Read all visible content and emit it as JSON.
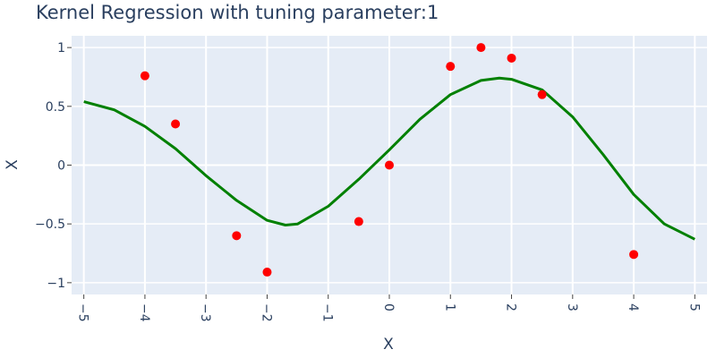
{
  "chart_data": {
    "type": "scatter",
    "title": "Kernel Regression with tuning parameter:1",
    "xlabel": "X",
    "ylabel": "X",
    "xlim": [
      -5.2,
      5.2
    ],
    "ylim": [
      -1.1,
      1.1
    ],
    "x_ticks": [
      -5,
      -4,
      -3,
      -2,
      -1,
      0,
      1,
      2,
      3,
      4,
      5
    ],
    "x_tick_labels": [
      "−5",
      "−4",
      "−3",
      "−2",
      "−1",
      "0",
      "1",
      "2",
      "3",
      "4",
      "5"
    ],
    "y_ticks": [
      -1,
      -0.5,
      0,
      0.5,
      1
    ],
    "y_tick_labels": [
      "−1",
      "−0.5",
      "0",
      "0.5",
      "1"
    ],
    "grid": true,
    "legend": "none",
    "plot_background": "#e5ecf6",
    "series": [
      {
        "type": "scatter",
        "color": "#ff0000",
        "points": [
          {
            "x": -4,
            "y": 0.76
          },
          {
            "x": -3.5,
            "y": 0.35
          },
          {
            "x": -2.5,
            "y": -0.6
          },
          {
            "x": -2,
            "y": -0.91
          },
          {
            "x": -0.5,
            "y": -0.48
          },
          {
            "x": 0,
            "y": 0
          },
          {
            "x": 1,
            "y": 0.84
          },
          {
            "x": 1.5,
            "y": 1.0
          },
          {
            "x": 2,
            "y": 0.91
          },
          {
            "x": 2.5,
            "y": 0.6
          },
          {
            "x": 4,
            "y": -0.76
          }
        ]
      },
      {
        "type": "line",
        "color": "#008000",
        "points": [
          {
            "x": -5,
            "y": 0.54
          },
          {
            "x": -4.5,
            "y": 0.47
          },
          {
            "x": -4,
            "y": 0.33
          },
          {
            "x": -3.5,
            "y": 0.14
          },
          {
            "x": -3,
            "y": -0.09
          },
          {
            "x": -2.5,
            "y": -0.3
          },
          {
            "x": -2,
            "y": -0.47
          },
          {
            "x": -1.7,
            "y": -0.51
          },
          {
            "x": -1.5,
            "y": -0.5
          },
          {
            "x": -1,
            "y": -0.35
          },
          {
            "x": -0.5,
            "y": -0.12
          },
          {
            "x": 0,
            "y": 0.13
          },
          {
            "x": 0.5,
            "y": 0.39
          },
          {
            "x": 1,
            "y": 0.6
          },
          {
            "x": 1.5,
            "y": 0.72
          },
          {
            "x": 1.8,
            "y": 0.74
          },
          {
            "x": 2,
            "y": 0.73
          },
          {
            "x": 2.5,
            "y": 0.64
          },
          {
            "x": 3,
            "y": 0.41
          },
          {
            "x": 3.5,
            "y": 0.09
          },
          {
            "x": 4,
            "y": -0.25
          },
          {
            "x": 4.5,
            "y": -0.5
          },
          {
            "x": 5,
            "y": -0.63
          }
        ]
      }
    ]
  }
}
